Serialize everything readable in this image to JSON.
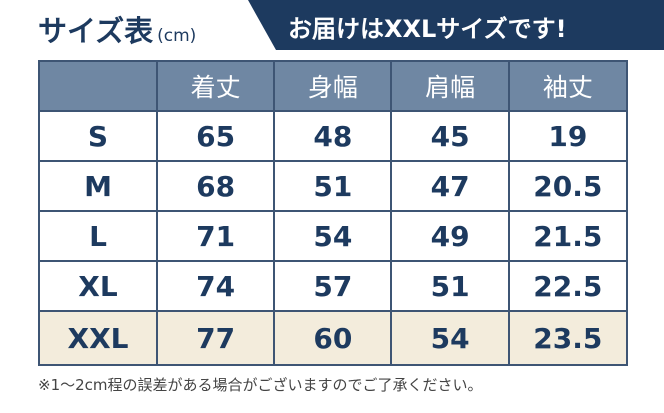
{
  "title": "サイズ表",
  "unit": "(cm)",
  "banner": "お届けはXXLサイズです!",
  "colors": {
    "navy": "#1d3a5f",
    "header": "#6f87a3",
    "highlight": "#f3ecdc"
  },
  "table": {
    "headers": [
      "",
      "着丈",
      "身幅",
      "肩幅",
      "袖丈"
    ],
    "rows": [
      [
        "S",
        "65",
        "48",
        "45",
        "19"
      ],
      [
        "M",
        "68",
        "51",
        "47",
        "20.5"
      ],
      [
        "L",
        "71",
        "54",
        "49",
        "21.5"
      ],
      [
        "XL",
        "74",
        "57",
        "51",
        "22.5"
      ],
      [
        "XXL",
        "77",
        "60",
        "54",
        "23.5"
      ]
    ],
    "highlighted_row": "XXL"
  },
  "note": "※1〜2cm程の誤差がある場合がございますのでご了承ください。"
}
